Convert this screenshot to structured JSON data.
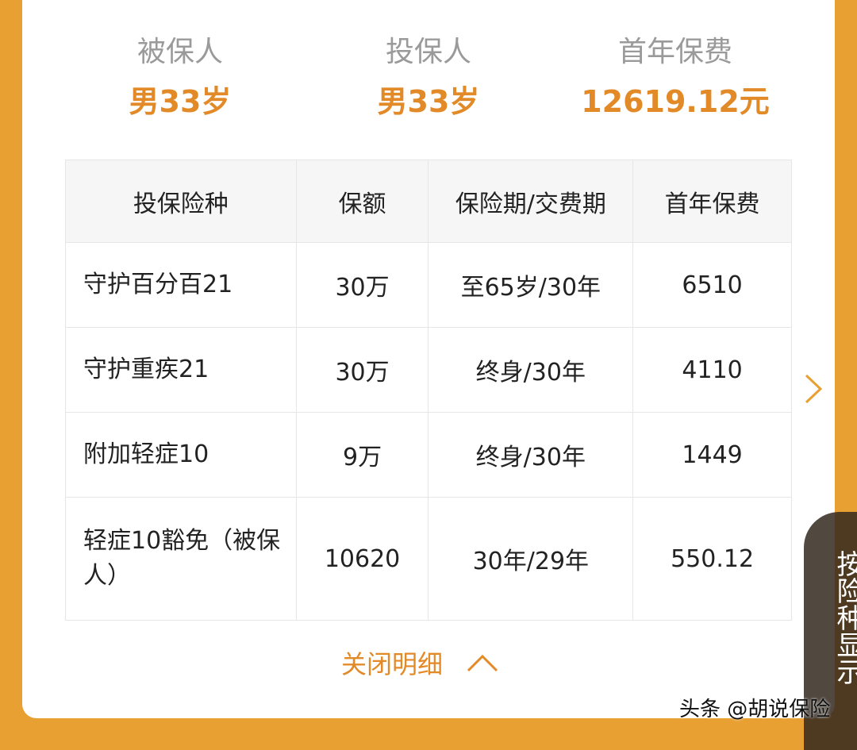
{
  "summary": [
    {
      "label": "被保人",
      "value": "男33岁"
    },
    {
      "label": "投保人",
      "value": "男33岁"
    },
    {
      "label": "首年保费",
      "value": "12619.12元"
    }
  ],
  "table": {
    "headers": [
      "投保险种",
      "保额",
      "保险期/交费期",
      "首年保费"
    ],
    "rows": [
      [
        "守护百分百21",
        "30万",
        "至65岁/30年",
        "6510"
      ],
      [
        "守护重疾21",
        "30万",
        "终身/30年",
        "4110"
      ],
      [
        "附加轻症10",
        "9万",
        "终身/30年",
        "1449"
      ],
      [
        "轻症10豁免（被保人）",
        "10620",
        "30年/29年",
        "550.12"
      ]
    ]
  },
  "close_label": "关闭明细",
  "side_button": "按险种显示",
  "watermark": "头条 @胡说保险",
  "colors": {
    "accent": "#E38A28",
    "background": "#E8A032"
  }
}
